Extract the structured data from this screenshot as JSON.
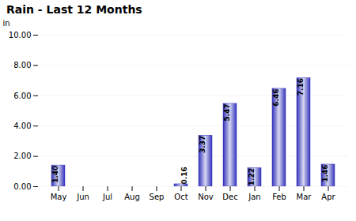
{
  "chart_data": {
    "type": "bar",
    "title": "Rain - Last 12 Months",
    "ylabel": "in",
    "categories": [
      "May",
      "Jun",
      "Jul",
      "Aug",
      "Sep",
      "Oct",
      "Nov",
      "Dec",
      "Jan",
      "Feb",
      "Mar",
      "Apr"
    ],
    "values": [
      1.4,
      0,
      0,
      0,
      0,
      0.16,
      3.37,
      5.47,
      1.22,
      6.46,
      7.16,
      1.46
    ],
    "value_labels": [
      "1.40",
      null,
      null,
      null,
      null,
      "0.16",
      "3.37",
      "5.47",
      "1.22",
      "6.46",
      "7.16",
      "1.46"
    ],
    "color": "#3333bb",
    "ylim": [
      0,
      10.0
    ],
    "yticks": [
      {
        "value": 0,
        "label": "0.00"
      },
      {
        "value": 2,
        "label": "2.00"
      },
      {
        "value": 4,
        "label": "4.00"
      },
      {
        "value": 6,
        "label": "6.00"
      },
      {
        "value": 8,
        "label": "8.00"
      },
      {
        "value": 10,
        "label": "10.00"
      }
    ],
    "grid": true,
    "data_labels": true
  }
}
